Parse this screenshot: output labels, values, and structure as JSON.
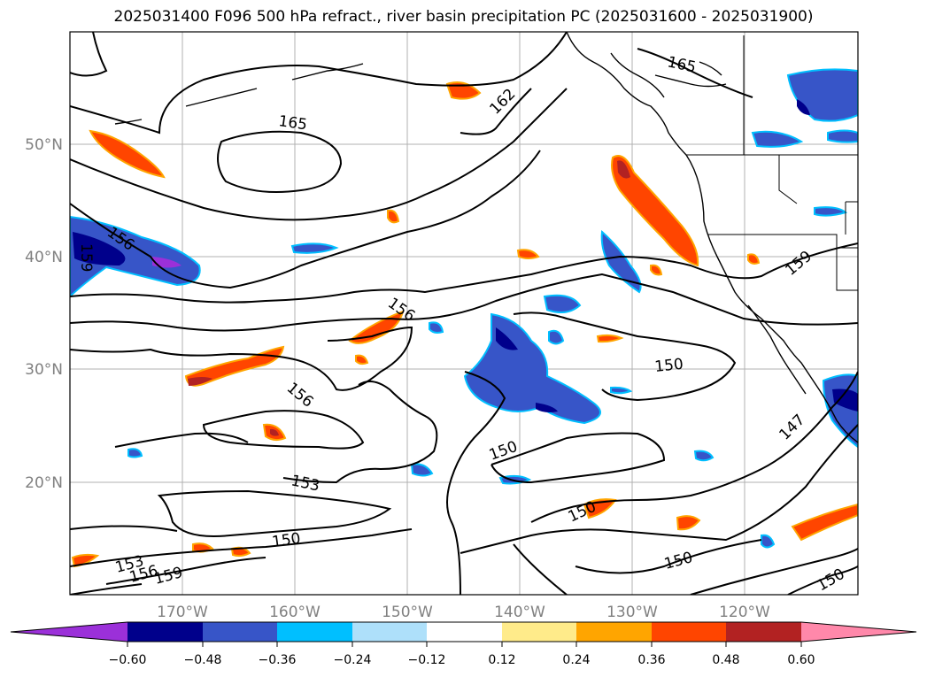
{
  "title": "2025031400 F096 500 hPa refract., river basin precipitation PC (2025031600 - 2025031900)",
  "map": {
    "lat_labels": [
      "50°N",
      "40°N",
      "30°N",
      "20°N"
    ],
    "lon_labels": [
      "170°W",
      "160°W",
      "150°W",
      "140°W",
      "130°W",
      "120°W"
    ],
    "contour_labels": [
      "165",
      "165",
      "162",
      "156",
      "159",
      "156",
      "159",
      "150",
      "156",
      "150",
      "153",
      "150",
      "150",
      "150",
      "147",
      "150",
      "153",
      "156",
      "159"
    ],
    "gridlines": true
  },
  "colorbar": {
    "ticks": [
      "−0.60",
      "−0.48",
      "−0.36",
      "−0.24",
      "−0.12",
      "0.12",
      "0.24",
      "0.36",
      "0.48",
      "0.60"
    ],
    "colors": [
      "#9b30d9",
      "#00008b",
      "#3755c8",
      "#00bfff",
      "#aee0fa",
      "#ffffff",
      "#ffeb8a",
      "#ffa500",
      "#ff4500",
      "#b22222",
      "#ff88aa"
    ]
  }
}
